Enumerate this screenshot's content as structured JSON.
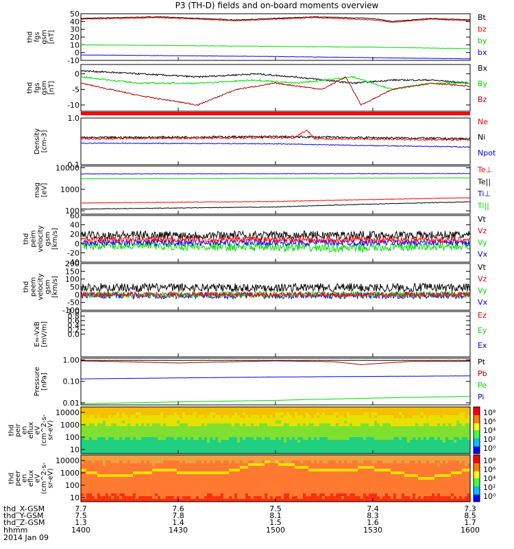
{
  "chart_data": {
    "type": "line",
    "title": "P3 (TH-D) fields and on-board moments overview",
    "date": "2014 Jan 09",
    "x_ticks": [
      "1400",
      "1430",
      "1500",
      "1530",
      "1600"
    ],
    "ephemeris": [
      {
        "label": "thd_X-GSM",
        "values": [
          "7.7",
          "7.6",
          "7.5",
          "7.4",
          "7.3"
        ]
      },
      {
        "label": "thd_Y-GSM",
        "values": [
          "7.5",
          "7.8",
          "8.1",
          "8.3",
          "8.5"
        ]
      },
      {
        "label": "thd_Z-GSM",
        "values": [
          "1.3",
          "1.4",
          "1.5",
          "1.6",
          "1.7"
        ]
      },
      {
        "label": "hhmm",
        "values": [
          "1400",
          "1430",
          "1500",
          "1530",
          "1600"
        ]
      }
    ],
    "colors": {
      "black": "#000000",
      "red": "#ff0000",
      "darkred": "#aa0000",
      "green": "#00dd00",
      "blue": "#0000ff",
      "orange": "#ff8800"
    },
    "panels": [
      {
        "ylabel": [
          "thd",
          "fgs",
          "gsm",
          "[nT]"
        ],
        "ylim": [
          -10,
          50
        ],
        "log": false,
        "ticks": [
          "50",
          "40",
          "30",
          "20",
          "10",
          "0",
          "-10"
        ],
        "legend": [
          {
            "text": "Bt",
            "color": "black"
          },
          {
            "text": "bz",
            "color": "red"
          },
          {
            "text": "by",
            "color": "green"
          },
          {
            "text": "bx",
            "color": "blue"
          }
        ],
        "series": [
          {
            "color": "black",
            "x": [
              0,
              0.2,
              0.4,
              0.5,
              0.6,
              0.75,
              0.8,
              0.9,
              1
            ],
            "y": [
              44,
              46,
              42,
              44,
              46,
              44,
              40,
              44,
              42
            ],
            "noise": 0.4
          },
          {
            "color": "red",
            "x": [
              0,
              0.2,
              0.4,
              0.5,
              0.6,
              0.75,
              0.8,
              0.9,
              1
            ],
            "y": [
              43,
              45,
              41,
              43,
              45,
              42,
              39,
              43,
              41
            ],
            "noise": 0.4
          },
          {
            "color": "green",
            "x": [
              0,
              0.5,
              0.75,
              1
            ],
            "y": [
              10,
              8,
              7,
              5
            ],
            "noise": 0.3
          },
          {
            "color": "blue",
            "x": [
              0,
              0.5,
              1
            ],
            "y": [
              -3,
              -5,
              -8
            ],
            "noise": 0.2
          }
        ]
      },
      {
        "ylabel": [
          "thd",
          "fgs",
          "gsm",
          "[nT]"
        ],
        "ylim": [
          -12,
          3
        ],
        "log": false,
        "ticks": [
          "0",
          "-5",
          "-10"
        ],
        "legend": [
          {
            "text": "Bx",
            "color": "black"
          },
          {
            "text": "By",
            "color": "green"
          },
          {
            "text": "Bz",
            "color": "darkred"
          }
        ],
        "series": [
          {
            "color": "black",
            "x": [
              0,
              0.15,
              0.3,
              0.45,
              0.55,
              0.7,
              0.8,
              0.9,
              1
            ],
            "y": [
              1,
              0,
              -1,
              0,
              -1,
              -3,
              -2,
              -2,
              -3
            ],
            "noise": 0.25
          },
          {
            "color": "green",
            "x": [
              0,
              0.15,
              0.3,
              0.45,
              0.55,
              0.7,
              0.8,
              0.9,
              1
            ],
            "y": [
              -1,
              -3,
              -3,
              -2,
              -3,
              -1,
              -5,
              -3,
              -3
            ],
            "noise": 0.25
          },
          {
            "color": "darkred",
            "x": [
              0,
              0.15,
              0.3,
              0.4,
              0.5,
              0.62,
              0.68,
              0.72,
              0.8,
              0.9,
              1
            ],
            "y": [
              -3,
              -7,
              -10,
              -5,
              -3,
              -5,
              -1,
              -10,
              -5,
              -3,
              -4
            ],
            "noise": 0.2
          }
        ]
      },
      {
        "ylabel": [
          "Density",
          "[cm-3]"
        ],
        "ylim": [
          0.1,
          1.0
        ],
        "log": true,
        "ticks": [
          "1.0",
          "0.1"
        ],
        "legend": [
          {
            "text": "Ne",
            "color": "red"
          },
          {
            "text": "Ni",
            "color": "black"
          },
          {
            "text": "Npot",
            "color": "blue"
          }
        ],
        "series": [
          {
            "color": "black",
            "x": [
              0,
              0.5,
              1
            ],
            "y": [
              0.38,
              0.4,
              0.36
            ],
            "noise": 0.05,
            "logNoise": true
          },
          {
            "color": "red",
            "x": [
              0,
              0.55,
              0.58,
              0.6,
              1
            ],
            "y": [
              0.36,
              0.38,
              0.55,
              0.36,
              0.34
            ],
            "noise": 0.04,
            "logNoise": true
          },
          {
            "color": "blue",
            "x": [
              0,
              0.5,
              0.7,
              1
            ],
            "y": [
              0.29,
              0.28,
              0.26,
              0.24
            ],
            "noise": 0.02,
            "logNoise": true
          }
        ]
      },
      {
        "ylabel": [
          "mag",
          "[eV]"
        ],
        "ylim": [
          70,
          12000
        ],
        "log": true,
        "ticks": [
          "10000",
          "1000",
          "100"
        ],
        "legend": [
          {
            "text": "Te⊥",
            "color": "red"
          },
          {
            "text": "Te||",
            "color": "black"
          },
          {
            "text": "Ti⊥",
            "color": "blue"
          },
          {
            "text": "Ti||",
            "color": "green"
          }
        ],
        "series": [
          {
            "color": "blue",
            "x": [
              0,
              1
            ],
            "y": [
              5200,
              5400
            ],
            "noise": 0.03,
            "logNoise": true
          },
          {
            "color": "green",
            "x": [
              0,
              1
            ],
            "y": [
              3100,
              3400
            ],
            "noise": 0.03,
            "logNoise": true
          },
          {
            "color": "red",
            "x": [
              0,
              0.5,
              1
            ],
            "y": [
              230,
              270,
              400
            ],
            "noise": 0.03,
            "logNoise": true
          },
          {
            "color": "black",
            "x": [
              0,
              0.5,
              1
            ],
            "y": [
              120,
              150,
              260
            ],
            "noise": 0.03,
            "logNoise": true
          }
        ]
      },
      {
        "ylabel": [
          "thd",
          "peim",
          "velocity",
          "gsm",
          "[km/s]"
        ],
        "ylim": [
          -40,
          60
        ],
        "log": false,
        "ticks": [
          "60",
          "40",
          "20",
          "0",
          "-20",
          "-40"
        ],
        "legend": [
          {
            "text": "Vt",
            "color": "black"
          },
          {
            "text": "Vz",
            "color": "red"
          },
          {
            "text": "Vy",
            "color": "green"
          },
          {
            "text": "Vx",
            "color": "blue"
          }
        ],
        "series": [
          {
            "color": "black",
            "x": [
              0,
              1
            ],
            "y": [
              18,
              18
            ],
            "noise": 9
          },
          {
            "color": "green",
            "x": [
              0,
              0.7,
              1
            ],
            "y": [
              -4,
              -10,
              -5
            ],
            "noise": 9
          },
          {
            "color": "blue",
            "x": [
              0,
              1
            ],
            "y": [
              2,
              2
            ],
            "noise": 7
          },
          {
            "color": "red",
            "x": [
              0,
              1
            ],
            "y": [
              8,
              8
            ],
            "noise": 7
          }
        ]
      },
      {
        "ylabel": [
          "thd",
          "peem",
          "velocity",
          "gsm",
          "[km/s]"
        ],
        "ylim": [
          -100,
          200
        ],
        "log": false,
        "ticks": [
          "200",
          "150",
          "100",
          "50",
          "0",
          "-50",
          "-100"
        ],
        "legend": [
          {
            "text": "Vt",
            "color": "black"
          },
          {
            "text": "Vz",
            "color": "red"
          },
          {
            "text": "Vy",
            "color": "green"
          },
          {
            "text": "Vx",
            "color": "blue"
          }
        ],
        "series": [
          {
            "color": "black",
            "x": [
              0,
              1
            ],
            "y": [
              45,
              45
            ],
            "noise": 28
          },
          {
            "color": "blue",
            "x": [
              0,
              1
            ],
            "y": [
              -5,
              -5
            ],
            "noise": 22
          },
          {
            "color": "green",
            "x": [
              0,
              1
            ],
            "y": [
              0,
              0
            ],
            "noise": 20
          },
          {
            "color": "red",
            "x": [
              0,
              1
            ],
            "y": [
              0,
              0
            ],
            "noise": 16
          }
        ]
      },
      {
        "ylabel": [
          "E=-VxB",
          "[mV/m]"
        ],
        "ylim": [
          -1,
          1
        ],
        "log": false,
        "ticks": [
          "1.0",
          "0.8",
          "0.6",
          "0.4",
          "0.2",
          "0.0"
        ],
        "legend": [
          {
            "text": "Ez",
            "color": "red"
          },
          {
            "text": "Ey",
            "color": "green"
          },
          {
            "text": "Ex",
            "color": "blue"
          }
        ],
        "series": []
      },
      {
        "ylabel": [
          "Pressure",
          "[nPa]"
        ],
        "ylim": [
          0.008,
          1.2
        ],
        "log": true,
        "ticks": [
          "1.00",
          "0.10",
          "0.01"
        ],
        "legend": [
          {
            "text": "Pt",
            "color": "black"
          },
          {
            "text": "Pb",
            "color": "darkred"
          },
          {
            "text": "Pe",
            "color": "green"
          },
          {
            "text": "Pi",
            "color": "blue"
          }
        ],
        "series": [
          {
            "color": "black",
            "x": [
              0,
              1
            ],
            "y": [
              0.95,
              0.95
            ],
            "noise": 0.01,
            "logNoise": true
          },
          {
            "color": "darkred",
            "x": [
              0,
              0.25,
              0.5,
              0.65,
              0.72,
              0.85,
              1
            ],
            "y": [
              0.9,
              0.72,
              0.9,
              0.82,
              0.6,
              0.85,
              0.85
            ],
            "noise": 0.008,
            "logNoise": true
          },
          {
            "color": "blue",
            "x": [
              0,
              0.5,
              1
            ],
            "y": [
              0.13,
              0.16,
              0.18
            ],
            "noise": 0.01,
            "logNoise": true
          },
          {
            "color": "green",
            "x": [
              0,
              0.5,
              1
            ],
            "y": [
              0.009,
              0.013,
              0.02
            ],
            "noise": 0.01,
            "logNoise": true
          }
        ]
      }
    ],
    "spectrograms": [
      {
        "ylabel": [
          "thd",
          "peir",
          "en",
          "eflux",
          "eV",
          "(cm^2-s-",
          "sr-eV)"
        ],
        "ticks": [
          "10000",
          "1000",
          "100",
          "10"
        ],
        "colorbar_ticks": [
          "10⁸",
          "10⁶",
          "10⁴",
          "10²",
          "10⁰"
        ],
        "kind": "ion"
      },
      {
        "ylabel": [
          "thd",
          "peer",
          "en",
          "eflux",
          "eV",
          "(cm^2-s-",
          "sr-eV)"
        ],
        "ticks": [
          "10000",
          "1000",
          "100",
          "10"
        ],
        "colorbar_ticks": [
          "10⁸",
          "10⁶",
          "10⁴",
          "10²",
          "10⁰"
        ],
        "kind": "electron"
      }
    ]
  }
}
